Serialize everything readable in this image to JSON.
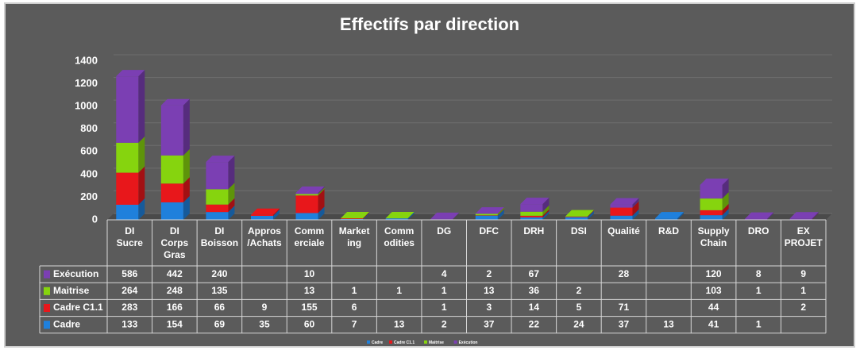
{
  "chart_data": {
    "type": "stacked_bar_3d",
    "title": "Effectifs par direction",
    "categories": [
      "DI Sucre",
      "DI Corps Gras",
      "DI Boisson",
      "Appros /Achats",
      "Comm erciale",
      "Market ing",
      "Comm odities",
      "DG",
      "DFC",
      "DRH",
      "DSI",
      "Qualité",
      "R&D",
      "Supply Chain",
      "DRO",
      "EX PROJET"
    ],
    "series": [
      {
        "name": "Cadre",
        "color": "#1f80dc",
        "values": [
          133,
          154,
          69,
          35,
          60,
          7,
          13,
          2,
          37,
          22,
          24,
          37,
          13,
          41,
          1,
          null
        ]
      },
      {
        "name": "Cadre C1.1",
        "color": "#e8171b",
        "values": [
          283,
          166,
          66,
          9,
          155,
          6,
          null,
          1,
          3,
          14,
          5,
          71,
          null,
          44,
          null,
          2
        ]
      },
      {
        "name": "Maitrise",
        "color": "#86d40e",
        "values": [
          264,
          248,
          135,
          null,
          13,
          1,
          1,
          1,
          13,
          36,
          2,
          null,
          null,
          103,
          1,
          1
        ]
      },
      {
        "name": "Exécution",
        "color": "#7b3fb3",
        "values": [
          586,
          442,
          240,
          null,
          10,
          null,
          null,
          4,
          2,
          67,
          null,
          28,
          null,
          120,
          8,
          9
        ]
      }
    ],
    "ylim": [
      0,
      1400
    ],
    "yticks": [
      0,
      200,
      400,
      600,
      800,
      1000,
      1200,
      1400
    ],
    "grid": true
  }
}
